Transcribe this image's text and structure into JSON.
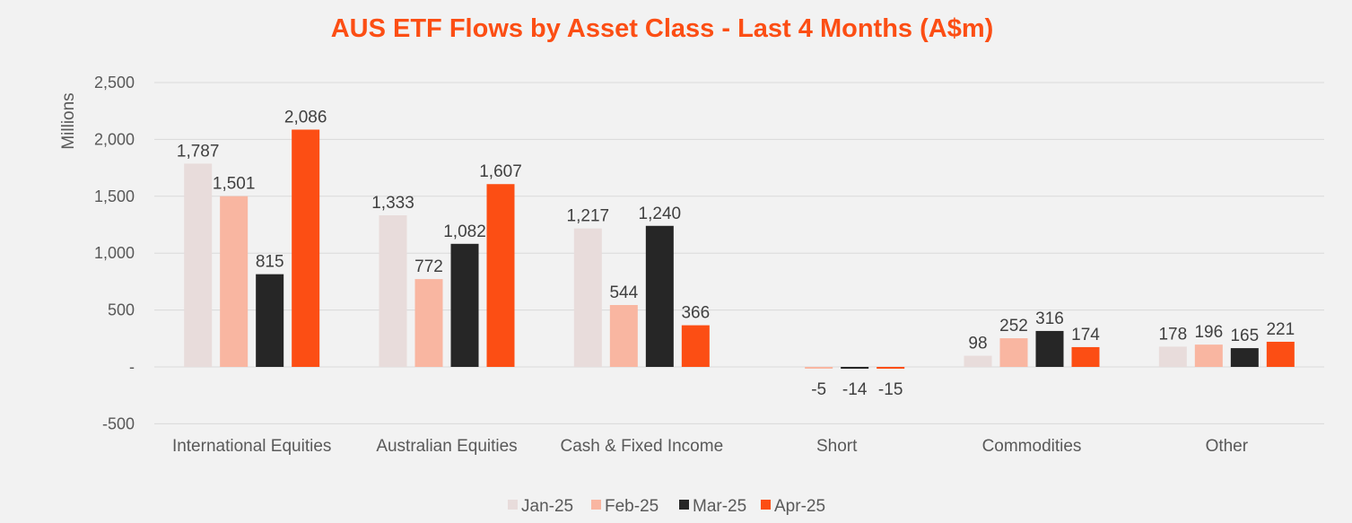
{
  "chart_data": {
    "type": "bar",
    "title": "AUS ETF Flows by Asset Class - Last 4 Months (A$m)",
    "xlabel": "",
    "ylabel": "Millions",
    "ylim": [
      -500,
      2500
    ],
    "yticks": [
      2500,
      2000,
      1500,
      1000,
      500,
      0,
      -500
    ],
    "ytick_labels": [
      "2,500",
      "2,000",
      "1,500",
      "1,000",
      "500",
      "-",
      "-500"
    ],
    "grid": true,
    "legend_position": "bottom",
    "categories": [
      "International Equities",
      "Australian Equities",
      "Cash & Fixed Income",
      "Short",
      "Commodities",
      "Other"
    ],
    "series": [
      {
        "name": "Jan-25",
        "color": "#e8dcdb",
        "values": [
          1787,
          1333,
          1217,
          0,
          98,
          178
        ],
        "labels": [
          "1,787",
          "1,333",
          "1,217",
          "",
          "98",
          "178"
        ]
      },
      {
        "name": "Feb-25",
        "color": "#f9b6a1",
        "values": [
          1501,
          772,
          544,
          -5,
          252,
          196
        ],
        "labels": [
          "1,501",
          "772",
          "544",
          "-5",
          "252",
          "196"
        ]
      },
      {
        "name": "Mar-25",
        "color": "#262626",
        "values": [
          815,
          1082,
          1240,
          -14,
          316,
          165
        ],
        "labels": [
          "815",
          "1,082",
          "1,240",
          "-14",
          "316",
          "165"
        ]
      },
      {
        "name": "Apr-25",
        "color": "#fc4e14",
        "values": [
          2086,
          1607,
          366,
          -15,
          174,
          221
        ],
        "labels": [
          "2,086",
          "1,607",
          "366",
          "-15",
          "174",
          "221"
        ]
      }
    ],
    "colors": {
      "title": "#fc4e14",
      "gridline": "#d9d9d9"
    }
  }
}
